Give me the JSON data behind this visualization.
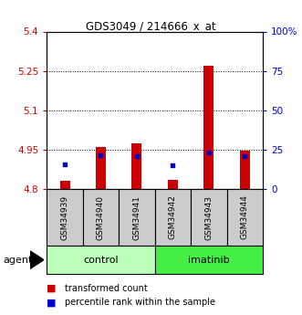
{
  "title": "GDS3049 / 214666_x_at",
  "samples": [
    "GSM34939",
    "GSM34940",
    "GSM34941",
    "GSM34942",
    "GSM34943",
    "GSM34944"
  ],
  "red_values": [
    4.83,
    4.96,
    4.975,
    4.835,
    5.27,
    4.945
  ],
  "blue_values": [
    4.895,
    4.93,
    4.925,
    4.89,
    4.94,
    4.925
  ],
  "ymin": 4.8,
  "ymax": 5.4,
  "yticks_left": [
    4.8,
    4.95,
    5.1,
    5.25,
    5.4
  ],
  "ytick_labels_left": [
    "4.8",
    "4.95",
    "5.1",
    "5.25",
    "5.4"
  ],
  "yticks_right_pct": [
    0,
    25,
    50,
    75,
    100
  ],
  "ytick_labels_right": [
    "0",
    "25",
    "50",
    "75",
    "100%"
  ],
  "bar_base": 4.8,
  "control_color": "#bbffbb",
  "imatinib_color": "#44ee44",
  "sample_box_color": "#cccccc",
  "red_color": "#cc0000",
  "blue_color": "#0000cc",
  "legend_items": [
    "transformed count",
    "percentile rank within the sample"
  ]
}
